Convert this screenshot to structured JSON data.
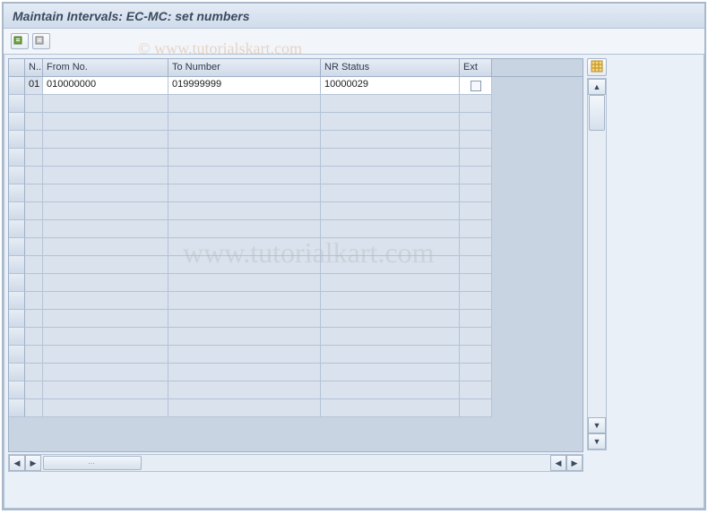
{
  "window": {
    "title": "Maintain Intervals: EC-MC: set numbers"
  },
  "toolbar": {
    "buttons": [
      {
        "name": "insert-row-icon",
        "color1": "#70a840",
        "color2": "#4c7a2e"
      },
      {
        "name": "delete-row-icon",
        "color1": "#888888",
        "color2": "#555555"
      }
    ]
  },
  "grid": {
    "columns": [
      {
        "key": "n",
        "label": "N..",
        "width_class": "col-n"
      },
      {
        "key": "from",
        "label": "From No.",
        "width_class": "col-from"
      },
      {
        "key": "to",
        "label": "To Number",
        "width_class": "col-to"
      },
      {
        "key": "nr",
        "label": "NR Status",
        "width_class": "col-nr"
      },
      {
        "key": "ext",
        "label": "Ext",
        "width_class": "col-ext"
      }
    ],
    "rows": [
      {
        "n": "01",
        "from": "010000000",
        "to": "019999999",
        "nr": "10000029",
        "ext": false
      }
    ],
    "empty_row_count": 18,
    "settings_icon": "table-settings-icon",
    "colors": {
      "header_bg_top": "#e7edf5",
      "header_bg_bottom": "#cfdae8",
      "cell_bg": "#d9e2ed",
      "cell_bg_active": "#ffffff",
      "border": "#b4c3d6",
      "text": "#1a1a1a"
    }
  },
  "scroll": {
    "up": "▲",
    "down": "▼",
    "left": "◀",
    "right": "▶",
    "hthumb_dots": "⋯"
  },
  "watermarks": {
    "top": "© www.tutorialskart.com",
    "center": "www.tutorialkart.com"
  }
}
